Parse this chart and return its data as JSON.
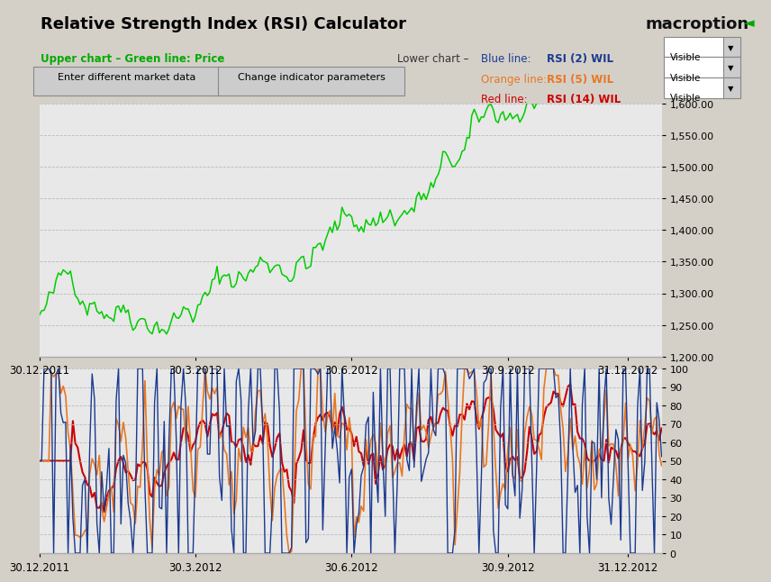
{
  "title": "Relative Strength Index (RSI) Calculator",
  "brand": "macroption",
  "upper_label": "Upper chart – Green line: Price",
  "lower_label": "Lower chart –",
  "blue_label": "Blue line:",
  "blue_desc": "RSI (2) WIL",
  "orange_label": "Orange line:",
  "orange_desc": "RSI (5) WIL",
  "red_label": "Red line:",
  "red_desc": "RSI (14) WIL",
  "visible_text": "Visible",
  "btn1": "Enter different market data",
  "btn2": "Change indicator parameters",
  "price_color": "#00cc00",
  "rsi2_color": "#1a3a8f",
  "rsi5_color": "#e87722",
  "rsi14_color": "#cc0000",
  "bg_color": "#d4d0c8",
  "chart_bg": "#e8e8e8",
  "grid_color": "#bbbbbb",
  "price_ylim": [
    1200,
    1600
  ],
  "price_yticks": [
    1200,
    1250,
    1300,
    1350,
    1400,
    1450,
    1500,
    1550,
    1600
  ],
  "rsi_ylim": [
    0,
    100
  ],
  "rsi_yticks": [
    0,
    10,
    20,
    30,
    40,
    50,
    60,
    70,
    80,
    90,
    100
  ],
  "date_labels": [
    "30.12.2011",
    "30.3.2012",
    "30.6.2012",
    "30.9.2012",
    "31.12.2012"
  ],
  "date_positions": [
    0,
    65,
    130,
    195,
    245
  ],
  "n_points": 260,
  "seed": 42
}
